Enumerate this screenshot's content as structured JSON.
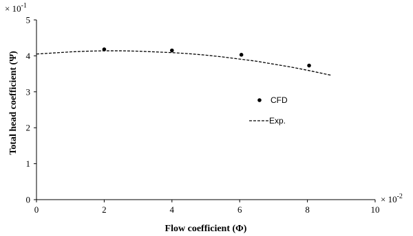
{
  "chart_data": {
    "type": "scatter",
    "xlabel": "Flow coefficient (Φ)",
    "ylabel": "Total head coefficient (Ψ)",
    "x_multiplier": "× 10",
    "x_multiplier_exp": "-2",
    "y_multiplier": "× 10",
    "y_multiplier_exp": "-1",
    "xlim": [
      0,
      10
    ],
    "ylim": [
      0,
      5
    ],
    "x_ticks": [
      0,
      2,
      4,
      6,
      8,
      10
    ],
    "y_ticks": [
      0,
      1,
      2,
      3,
      4,
      5
    ],
    "grid": false,
    "legend_position": "center-right",
    "series": [
      {
        "name": "CFD",
        "style": "markers",
        "color": "#000000",
        "x": [
          2.0,
          4.0,
          6.05,
          8.05
        ],
        "y": [
          4.18,
          4.15,
          4.03,
          3.73
        ]
      },
      {
        "name": "Exp.",
        "style": "dashed",
        "color": "#000000",
        "x": [
          0,
          0.5,
          1.0,
          1.5,
          2.0,
          2.5,
          3.0,
          3.5,
          4.0,
          4.5,
          5.0,
          5.5,
          6.0,
          6.5,
          7.0,
          7.5,
          8.0,
          8.5,
          8.7
        ],
        "y": [
          4.05,
          4.08,
          4.11,
          4.13,
          4.14,
          4.14,
          4.13,
          4.11,
          4.09,
          4.06,
          4.02,
          3.97,
          3.91,
          3.85,
          3.77,
          3.69,
          3.6,
          3.5,
          3.46
        ]
      }
    ]
  }
}
